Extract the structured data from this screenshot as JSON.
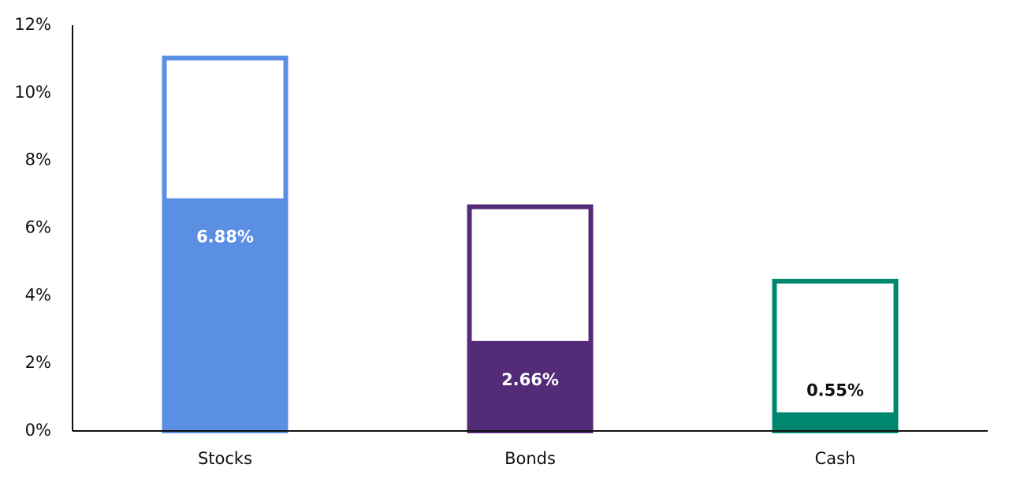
{
  "chart_data": {
    "type": "bar",
    "categories": [
      "Stocks",
      "Bonds",
      "Cash"
    ],
    "values": [
      6.88,
      2.66,
      0.55
    ],
    "value_labels": [
      "6.88%",
      "2.66%",
      "0.55%"
    ],
    "upper": [
      11.1,
      6.7,
      4.5
    ],
    "colors": [
      "#5b8fe3",
      "#542b78",
      "#00876d"
    ],
    "ylim": [
      0,
      12
    ],
    "yticks": [
      {
        "value": 0,
        "label": "0%"
      },
      {
        "value": 2,
        "label": "2%"
      },
      {
        "value": 4,
        "label": "4%"
      },
      {
        "value": 6,
        "label": "6%"
      },
      {
        "value": 8,
        "label": "8%"
      },
      {
        "value": 10,
        "label": "10%"
      },
      {
        "value": 12,
        "label": "12%"
      }
    ],
    "grid": false
  }
}
